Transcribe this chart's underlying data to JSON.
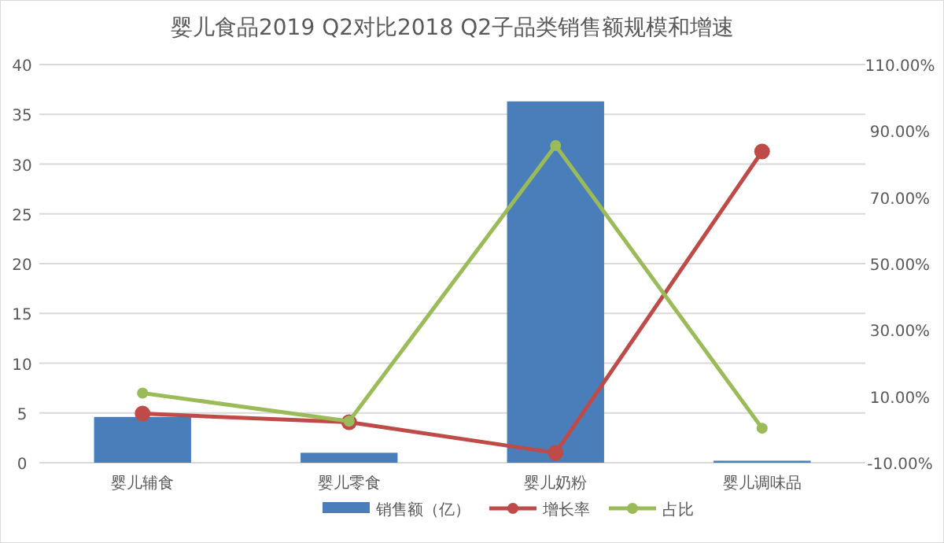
{
  "chart_data": {
    "type": "bar",
    "title": "婴儿食品2019 Q2对比2018 Q2子品类销售额规模和增速",
    "categories": [
      "婴儿辅食",
      "婴儿零食",
      "婴儿奶粉",
      "婴儿调味品"
    ],
    "series": [
      {
        "name": "销售额（亿）",
        "color": "#4a7ebb",
        "values": [
          4.6,
          1.0,
          36.3,
          0.2
        ]
      },
      {
        "name": "增长率",
        "type": "line",
        "axis": "y2",
        "color": "#be4b48",
        "values": [
          4.8,
          2.2,
          -7.0,
          83.8
        ]
      },
      {
        "name": "占比",
        "type": "line",
        "axis": "y2",
        "color": "#9bbb59",
        "values": [
          11.0,
          2.5,
          85.6,
          0.4
        ]
      }
    ],
    "ylim": [
      0,
      40
    ],
    "yticks": [
      0,
      5,
      10,
      15,
      20,
      25,
      30,
      35,
      40
    ],
    "y2lim": [
      -10,
      110
    ],
    "y2ticks": [
      {
        "value": -10,
        "label": "-10.00%"
      },
      {
        "value": 10,
        "label": "10.00%"
      },
      {
        "value": 30,
        "label": "30.00%"
      },
      {
        "value": 50,
        "label": "50.00%"
      },
      {
        "value": 70,
        "label": "70.00%"
      },
      {
        "value": 90,
        "label": "90.00%"
      },
      {
        "value": 110,
        "label": "110.00%"
      }
    ],
    "grid": "y",
    "legend": "bottom",
    "marker": "circle",
    "line_style": "solid"
  }
}
